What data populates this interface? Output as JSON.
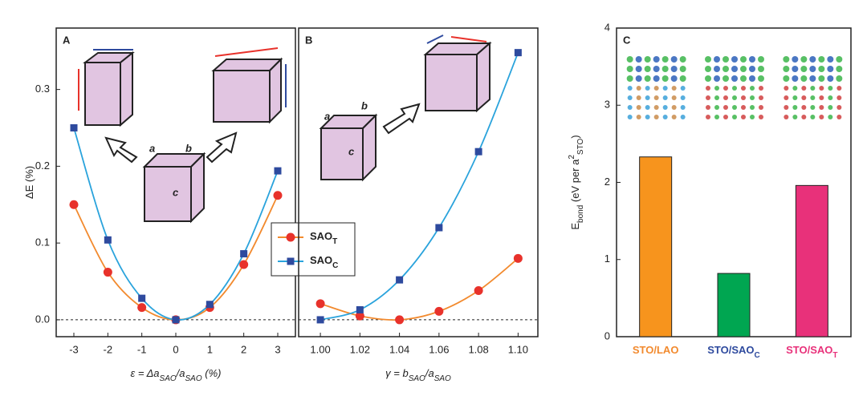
{
  "chart_data": [
    {
      "type": "line",
      "panel_label": "A",
      "xlim": [
        -3.52,
        3.52
      ],
      "ylim": [
        -0.022,
        0.38
      ],
      "xticks": [
        -3,
        -2,
        -1,
        0,
        1,
        2,
        3
      ],
      "yticks": [
        {
          "value": 0,
          "label": "0.0"
        },
        0.1,
        0.2,
        0.3
      ],
      "x_label": [
        {
          "text": "ε = Δa"
        },
        {
          "text": "SAO",
          "sub": true
        },
        {
          "text": "/a"
        },
        {
          "text": "SAO",
          "sub": true
        },
        {
          "text": " (%)"
        }
      ],
      "y_label": [
        {
          "text": "ΔE (%)"
        }
      ],
      "reference_line": 0,
      "legend": true,
      "x": [
        -3,
        -2,
        -1,
        0,
        1,
        2,
        3
      ],
      "series": [
        {
          "name": "SAO",
          "name_sub": "T",
          "color": "#f28a2e",
          "marker_color": "#e8322b",
          "marker": "circle",
          "values": [
            0.15,
            0.062,
            0.016,
            0,
            0.016,
            0.072,
            0.162
          ]
        },
        {
          "name": "SAO",
          "name_sub": "C",
          "color": "#2aa3dc",
          "marker_color": "#2e4a9e",
          "marker": "square",
          "values": [
            0.25,
            0.104,
            0.028,
            0,
            0.02,
            0.086,
            0.194
          ]
        }
      ],
      "annotations": [
        "a",
        "b",
        "c"
      ]
    },
    {
      "type": "line",
      "panel_label": "B",
      "xlim": [
        0.989,
        1.11
      ],
      "ylim": [
        -0.022,
        0.38
      ],
      "xticks": [
        {
          "value": 1.0,
          "label": "1.00"
        },
        1.02,
        1.04,
        1.06,
        1.08,
        {
          "value": 1.1,
          "label": "1.10"
        }
      ],
      "x_label": [
        {
          "text": "γ = b"
        },
        {
          "text": "SAO",
          "sub": true
        },
        {
          "text": "/a"
        },
        {
          "text": "SAO",
          "sub": true
        }
      ],
      "reference_line": 0,
      "x": [
        1.0,
        1.02,
        1.04,
        1.06,
        1.08,
        1.1
      ],
      "series": [
        {
          "color": "#f28a2e",
          "marker_color": "#e8322b",
          "marker": "circle",
          "values": [
            0.021,
            0.005,
            0,
            0.011,
            0.038,
            0.08
          ]
        },
        {
          "color": "#2aa3dc",
          "marker_color": "#2e4a9e",
          "marker": "square",
          "values": [
            0,
            0.013,
            0.052,
            0.12,
            0.219,
            0.348
          ]
        }
      ],
      "annotations": [
        "a",
        "b",
        "c"
      ]
    },
    {
      "type": "bar",
      "panel_label": "C",
      "ylim": [
        0,
        4
      ],
      "yticks": [
        0,
        1,
        2,
        3,
        4
      ],
      "y_label": [
        {
          "text": "E"
        },
        {
          "text": "bond",
          "sub": true
        },
        {
          "text": " (eV per a"
        },
        {
          "text": "2",
          "sup": true
        },
        {
          "text": "STO",
          "sub": true
        },
        {
          "text": ")"
        }
      ],
      "categories": [
        [
          {
            "text": "STO/LAO"
          }
        ],
        [
          {
            "text": "STO/SAO"
          },
          {
            "text": "C",
            "sub": true
          }
        ],
        [
          {
            "text": "STO/SAO"
          },
          {
            "text": "T",
            "sub": true
          }
        ]
      ],
      "category_colors": [
        "#f28a2e",
        "#2e4a9e",
        "#e8317a"
      ],
      "values": [
        2.33,
        0.82,
        1.96
      ],
      "colors": [
        "#f7941d",
        "#00a651",
        "#e8317a"
      ]
    }
  ]
}
